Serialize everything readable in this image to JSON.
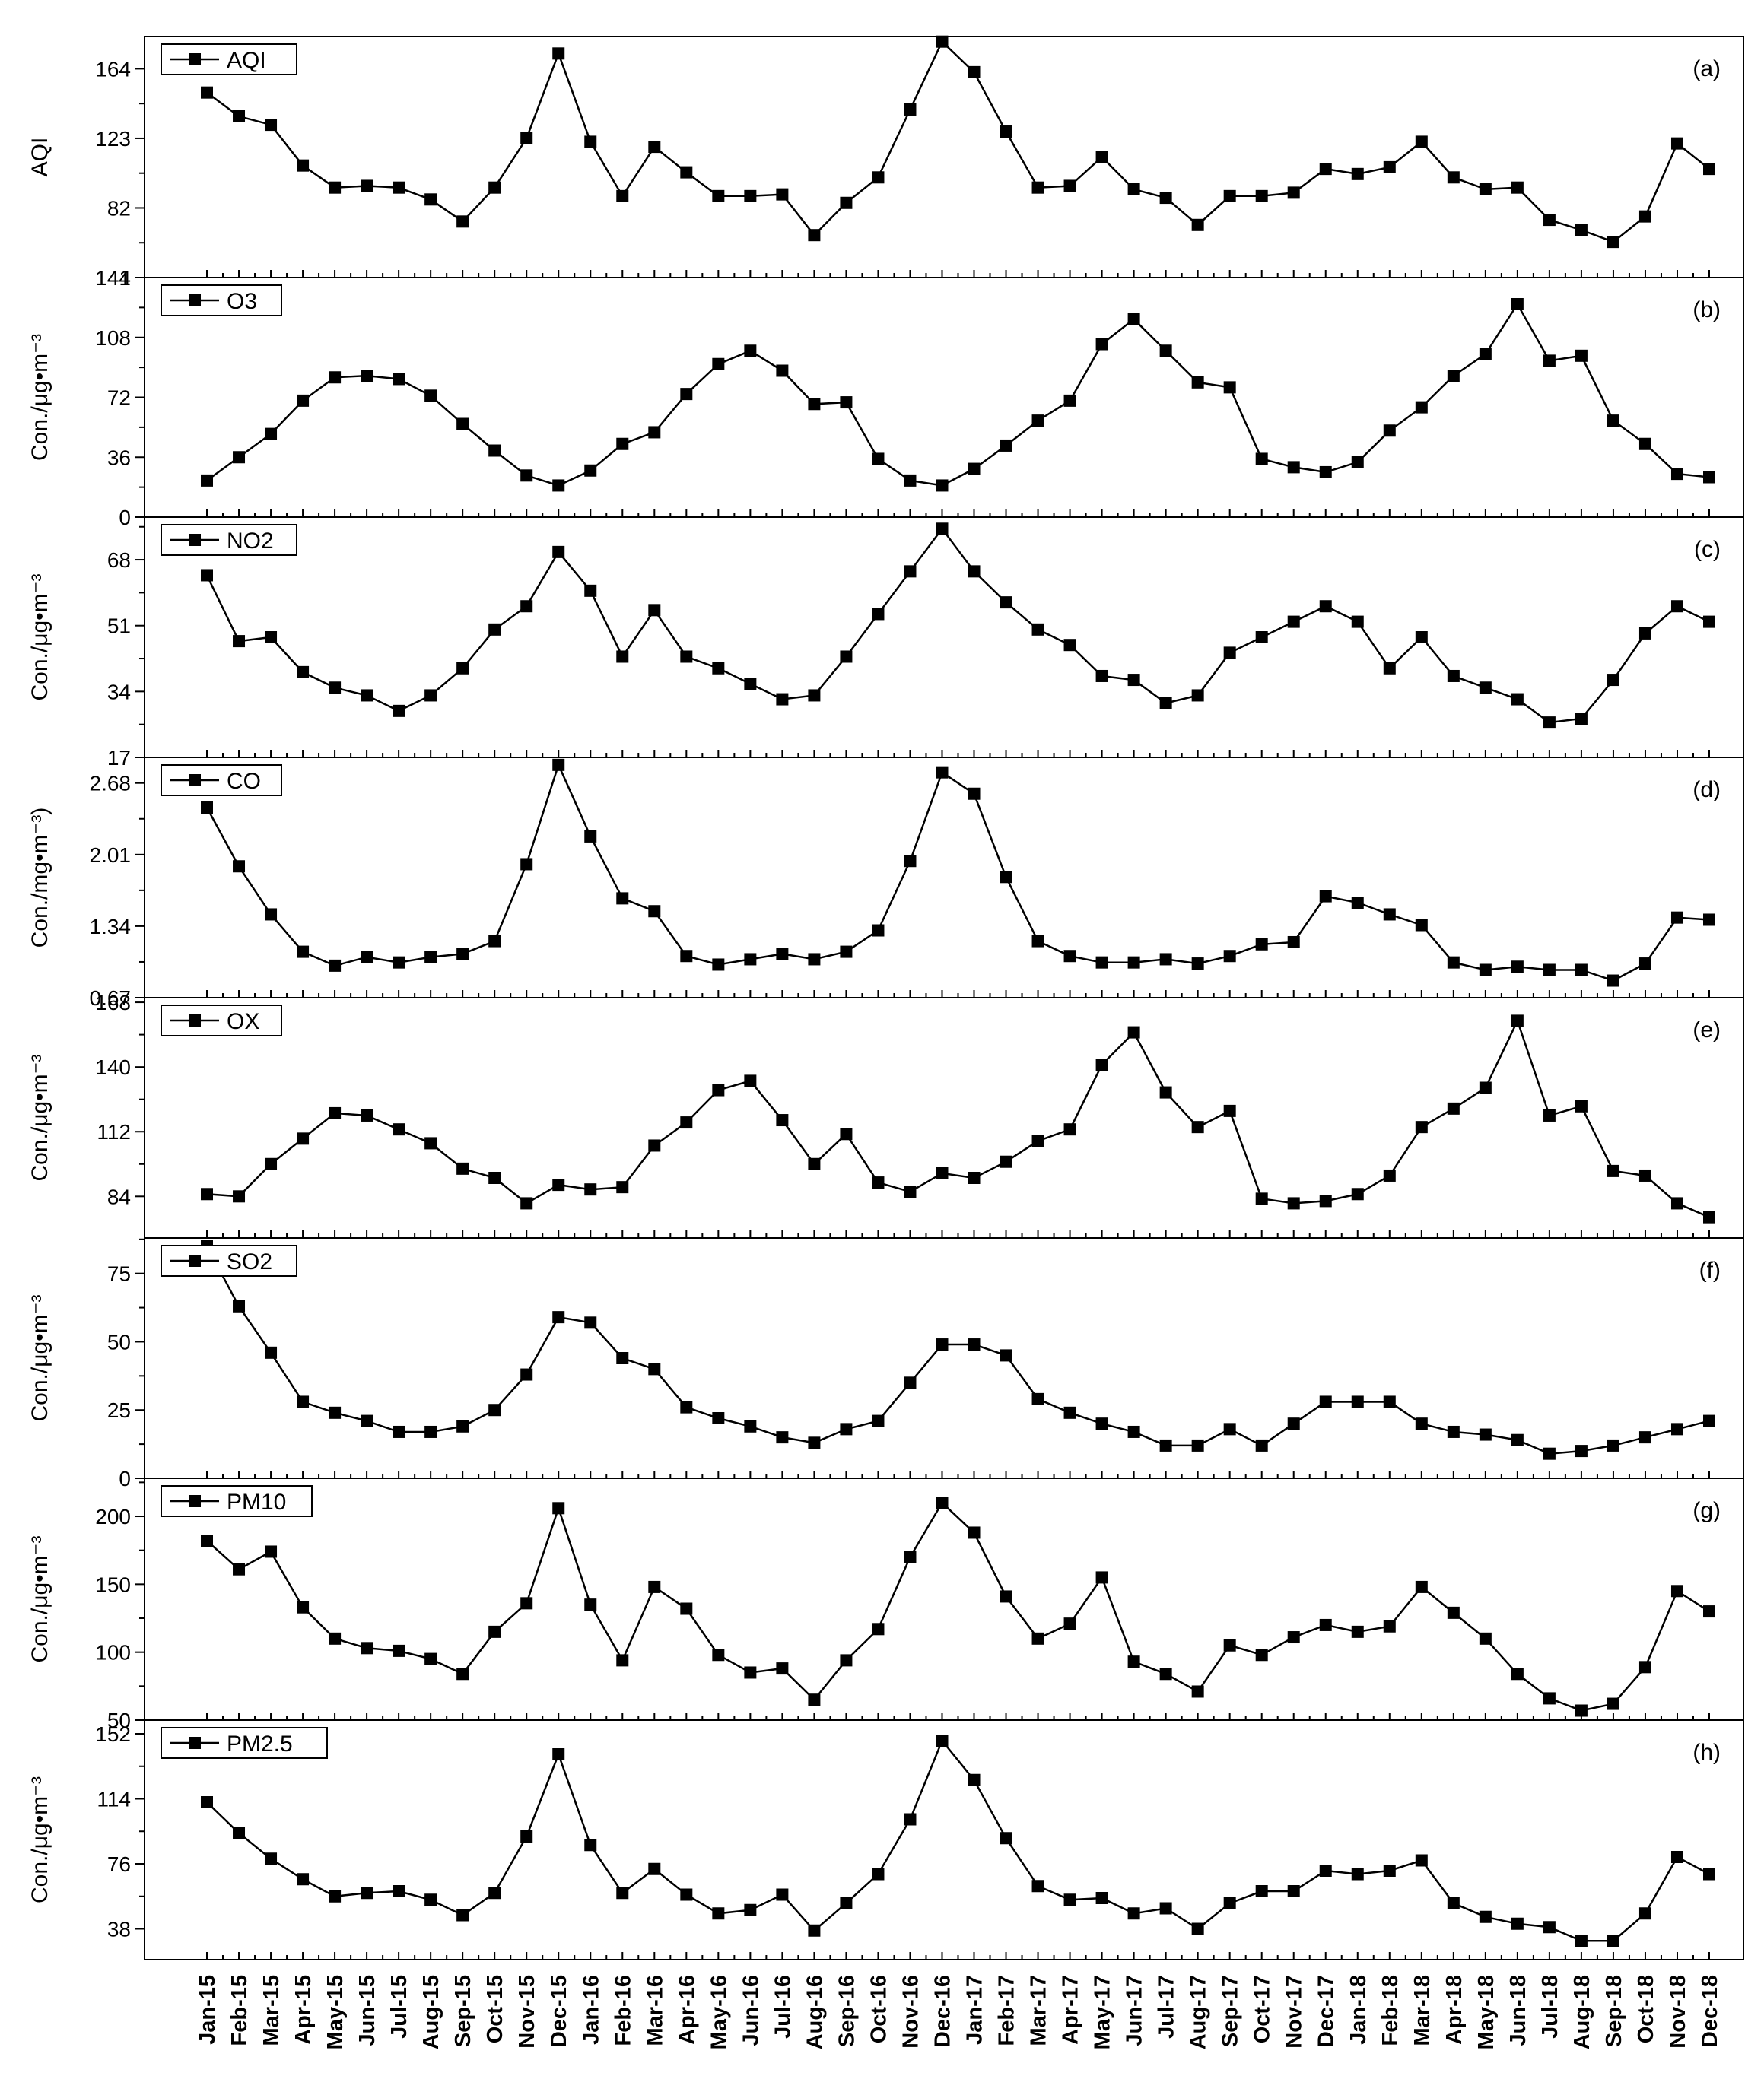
{
  "chart_data": {
    "type": "line",
    "x_categories": [
      "Jan-15",
      "Feb-15",
      "Mar-15",
      "Apr-15",
      "May-15",
      "Jun-15",
      "Jul-15",
      "Aug-15",
      "Sep-15",
      "Oct-15",
      "Nov-15",
      "Dec-15",
      "Jan-16",
      "Feb-16",
      "Mar-16",
      "Apr-16",
      "May-16",
      "Jun-16",
      "Jul-16",
      "Aug-16",
      "Sep-16",
      "Oct-16",
      "Nov-16",
      "Dec-16",
      "Jan-17",
      "Feb-17",
      "Mar-17",
      "Apr-17",
      "May-17",
      "Jun-17",
      "Jul-17",
      "Aug-17",
      "Sep-17",
      "Oct-17",
      "Nov-17",
      "Dec-17",
      "Jan-18",
      "Feb-18",
      "Mar-18",
      "Apr-18",
      "May-18",
      "Jun-18",
      "Jul-18",
      "Aug-18",
      "Sep-18",
      "Oct-18",
      "Nov-18",
      "Dec-18"
    ],
    "grid": false,
    "marker": "square",
    "line_color": "#000000",
    "panels": [
      {
        "label": "(a)",
        "legend": "AQI",
        "ylabel": "AQI",
        "ylim": [
          41,
          183
        ],
        "yticks": [
          "41",
          "82",
          "123",
          "164"
        ],
        "values": [
          150,
          136,
          131,
          107,
          94,
          95,
          94,
          87,
          74,
          94,
          123,
          173,
          121,
          89,
          118,
          103,
          89,
          89,
          90,
          66,
          85,
          100,
          140,
          180,
          162,
          127,
          94,
          95,
          112,
          93,
          88,
          72,
          89,
          89,
          91,
          105,
          102,
          106,
          121,
          100,
          93,
          94,
          75,
          69,
          62,
          77,
          120,
          105
        ]
      },
      {
        "label": "(b)",
        "legend": "O3",
        "ylabel": "Con./μg•m⁻³",
        "ylim": [
          0,
          144
        ],
        "yticks": [
          "0",
          "36",
          "72",
          "108",
          "144"
        ],
        "values": [
          22,
          36,
          50,
          70,
          84,
          85,
          83,
          73,
          56,
          40,
          25,
          19,
          28,
          44,
          51,
          74,
          92,
          100,
          88,
          68,
          69,
          35,
          22,
          19,
          29,
          43,
          58,
          70,
          104,
          119,
          100,
          81,
          78,
          35,
          30,
          27,
          33,
          52,
          66,
          85,
          98,
          128,
          94,
          97,
          58,
          44,
          26,
          24
        ]
      },
      {
        "label": "(c)",
        "legend": "NO2",
        "ylabel": "Con./μg•m⁻³",
        "ylim": [
          17,
          79
        ],
        "yticks": [
          "17",
          "34",
          "51",
          "68"
        ],
        "values": [
          64,
          47,
          48,
          39,
          35,
          33,
          29,
          33,
          40,
          50,
          56,
          70,
          60,
          43,
          55,
          43,
          40,
          36,
          32,
          33,
          43,
          54,
          65,
          76,
          65,
          57,
          50,
          46,
          38,
          37,
          31,
          33,
          44,
          48,
          52,
          56,
          52,
          40,
          48,
          38,
          35,
          32,
          26,
          27,
          37,
          49,
          56,
          52
        ]
      },
      {
        "label": "(d)",
        "legend": "CO",
        "ylabel": "Con./mg•m⁻³)",
        "ylim": [
          0.67,
          2.92
        ],
        "yticks": [
          "0.67",
          "1.34",
          "2.01",
          "2.68"
        ],
        "values": [
          2.45,
          1.9,
          1.45,
          1.1,
          0.97,
          1.05,
          1.0,
          1.05,
          1.08,
          1.2,
          1.92,
          2.85,
          2.18,
          1.6,
          1.48,
          1.06,
          0.98,
          1.03,
          1.08,
          1.03,
          1.1,
          1.3,
          1.95,
          2.78,
          2.58,
          1.8,
          1.2,
          1.06,
          1.0,
          1.0,
          1.03,
          0.99,
          1.06,
          1.17,
          1.19,
          1.62,
          1.56,
          1.45,
          1.35,
          1.0,
          0.93,
          0.96,
          0.93,
          0.93,
          0.83,
          0.99,
          1.42,
          1.4
        ]
      },
      {
        "label": "(e)",
        "legend": "OX",
        "ylabel": "Con./μg•m⁻³",
        "ylim": [
          66,
          170
        ],
        "yticks": [
          "84",
          "112",
          "140",
          "168"
        ],
        "values": [
          85,
          84,
          98,
          109,
          120,
          119,
          113,
          107,
          96,
          92,
          81,
          89,
          87,
          88,
          106,
          116,
          130,
          134,
          117,
          98,
          111,
          90,
          86,
          94,
          92,
          99,
          108,
          113,
          141,
          155,
          129,
          114,
          121,
          83,
          81,
          82,
          85,
          93,
          114,
          122,
          131,
          160,
          119,
          123,
          95,
          93,
          81,
          75
        ]
      },
      {
        "label": "(f)",
        "legend": "SO2",
        "ylabel": "Con./μg•m⁻³",
        "ylim": [
          0,
          88
        ],
        "yticks": [
          "0",
          "25",
          "50",
          "75"
        ],
        "values": [
          85,
          63,
          46,
          28,
          24,
          21,
          17,
          17,
          19,
          25,
          38,
          59,
          57,
          44,
          40,
          26,
          22,
          19,
          15,
          13,
          18,
          21,
          35,
          49,
          49,
          45,
          29,
          24,
          20,
          17,
          12,
          12,
          18,
          12,
          20,
          28,
          28,
          28,
          20,
          17,
          16,
          14,
          9,
          10,
          12,
          15,
          18,
          21
        ]
      },
      {
        "label": "(g)",
        "legend": "PM10",
        "ylabel": "Con./μg•m⁻³",
        "ylim": [
          50,
          228
        ],
        "yticks": [
          "50",
          "100",
          "150",
          "200"
        ],
        "values": [
          182,
          161,
          174,
          133,
          110,
          103,
          101,
          95,
          84,
          115,
          136,
          206,
          135,
          94,
          148,
          132,
          98,
          85,
          88,
          65,
          94,
          117,
          170,
          210,
          188,
          141,
          110,
          121,
          155,
          93,
          84,
          71,
          105,
          98,
          111,
          120,
          115,
          119,
          148,
          129,
          110,
          84,
          66,
          57,
          62,
          89,
          145,
          130
        ]
      },
      {
        "label": "(h)",
        "legend": "PM2.5",
        "ylabel": "Con./μg•m⁻³",
        "ylim": [
          20,
          160
        ],
        "yticks": [
          "38",
          "76",
          "114",
          "152"
        ],
        "values": [
          112,
          94,
          79,
          67,
          57,
          59,
          60,
          55,
          46,
          59,
          92,
          140,
          87,
          59,
          73,
          58,
          47,
          49,
          58,
          37,
          53,
          70,
          102,
          148,
          125,
          91,
          63,
          55,
          56,
          47,
          50,
          38,
          53,
          60,
          60,
          72,
          70,
          72,
          78,
          53,
          45,
          41,
          39,
          31,
          31,
          47,
          80,
          70
        ]
      }
    ]
  }
}
